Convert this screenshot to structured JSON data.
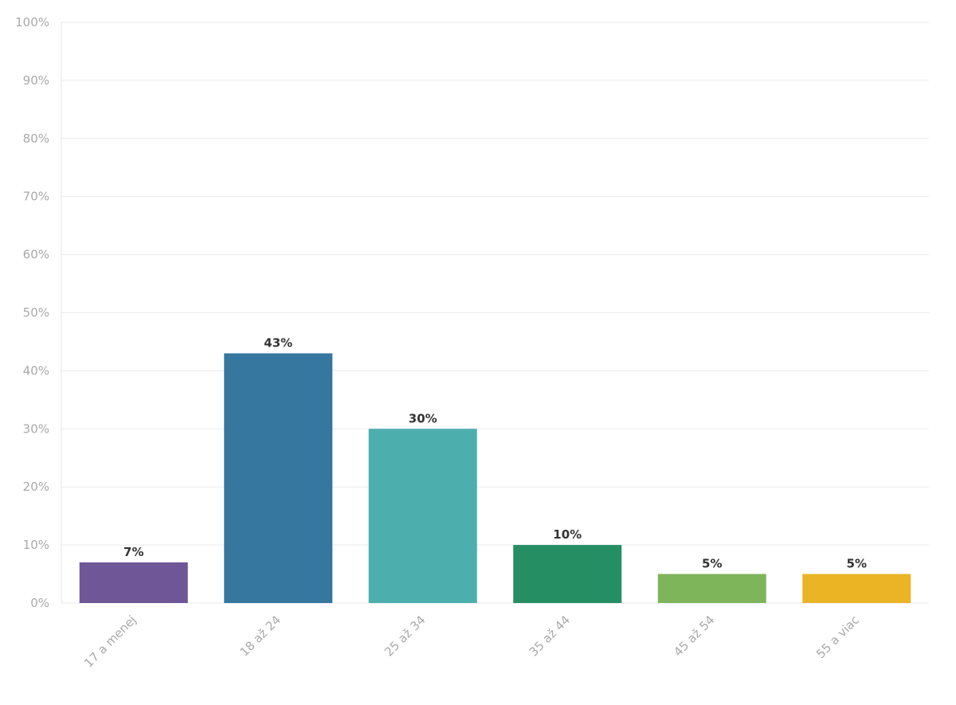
{
  "chart_data": {
    "type": "bar",
    "categories": [
      "17 a menej",
      "18 až 24",
      "25 až 34",
      "35 až 44",
      "45 až 54",
      "55 a viac"
    ],
    "values": [
      7,
      43,
      30,
      10,
      5,
      5
    ],
    "value_labels": [
      "7%",
      "43%",
      "30%",
      "10%",
      "5%",
      "5%"
    ],
    "colors": [
      "#6f5697",
      "#3677a0",
      "#4daeae",
      "#268e63",
      "#7eb55b",
      "#ebb425"
    ],
    "y_ticks": [
      "0%",
      "10%",
      "20%",
      "30%",
      "40%",
      "50%",
      "60%",
      "70%",
      "80%",
      "90%",
      "100%"
    ],
    "ylim": [
      0,
      100
    ],
    "grid": true,
    "legend": "none"
  }
}
